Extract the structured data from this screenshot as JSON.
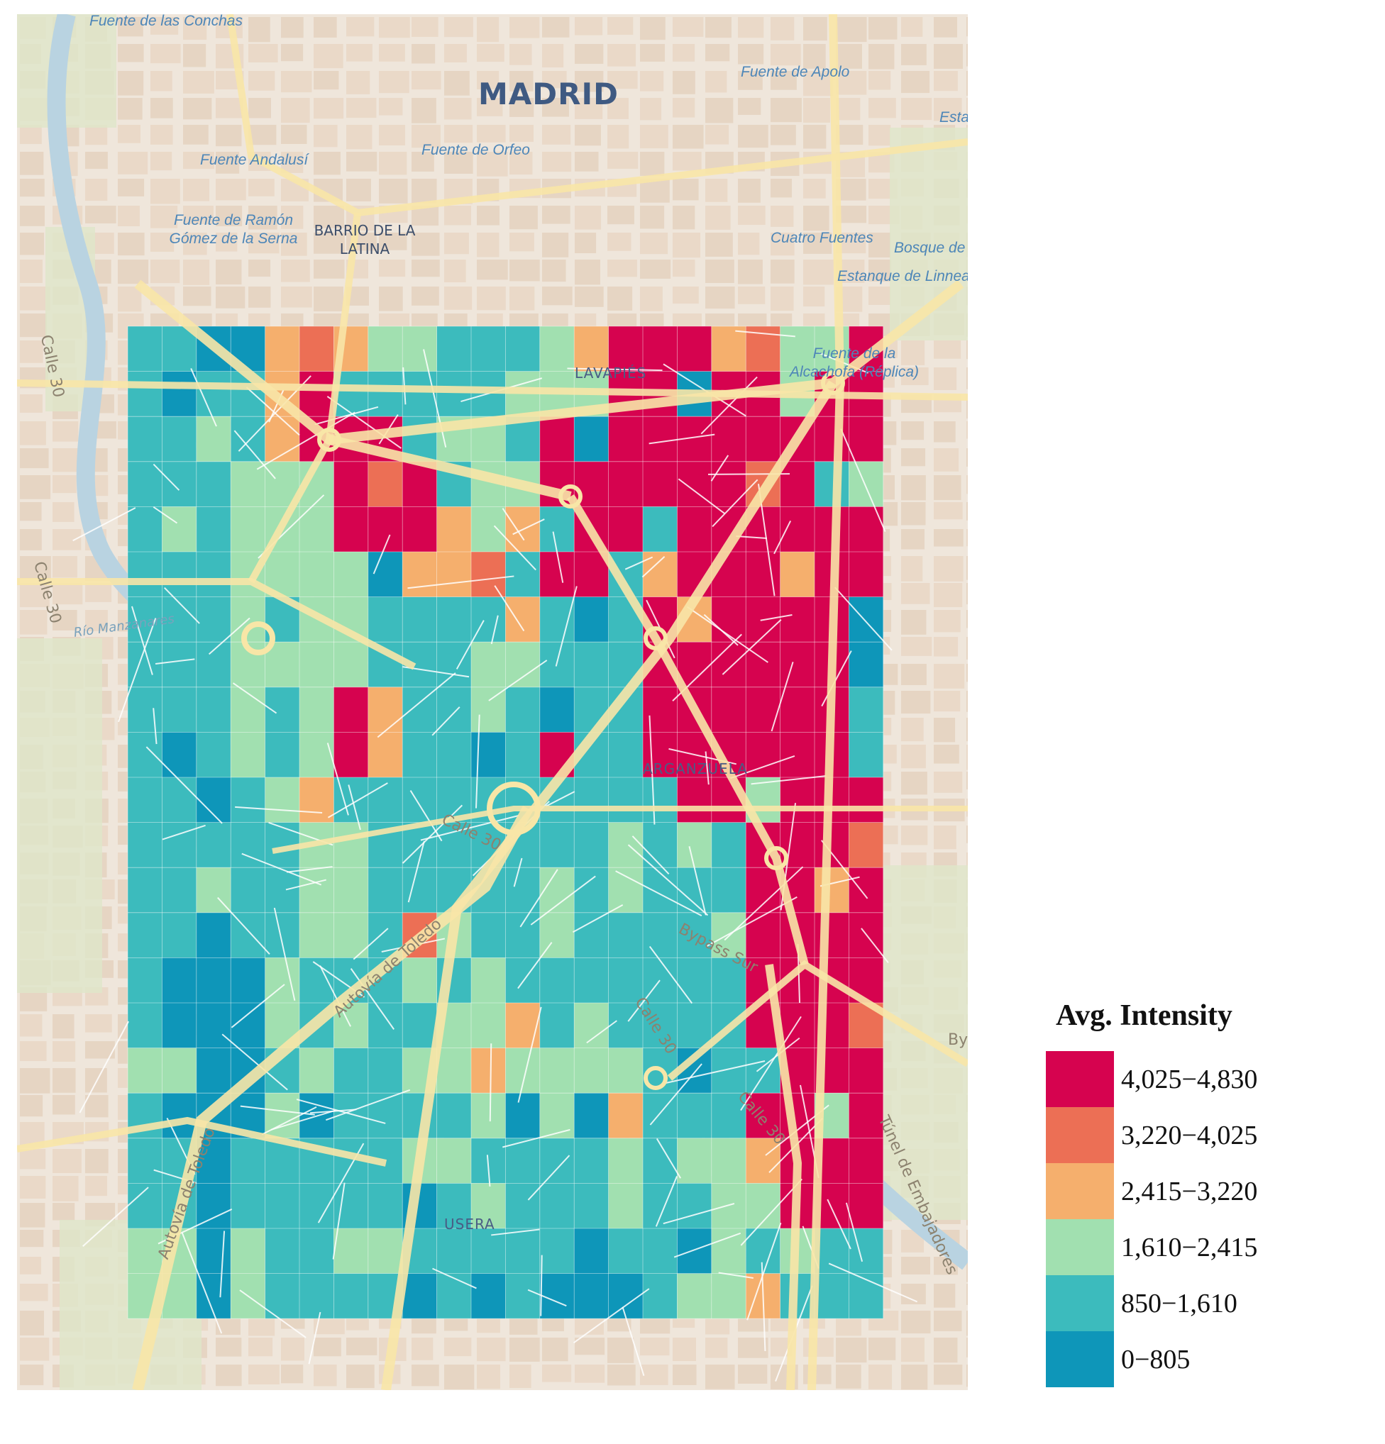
{
  "map": {
    "city_label": "MADRID",
    "neighborhoods": [
      "BARRIO DE LA LATINA",
      "LAVAPIÉS",
      "ARGANZUELA",
      "USERA"
    ],
    "places": [
      "Fuente de las Conchas",
      "Fuente de Apolo",
      "Fuente de Orfeo",
      "Fuente Andalusí",
      "Fuente de Ramón Gómez de la Serna",
      "Cuatro Fuentes",
      "Bosque de",
      "Estanque de Linnea",
      "Esta",
      "Fuente de la Alcachofa (Réplica)"
    ],
    "roads": [
      "Calle 30",
      "Calle 30",
      "Calle 30",
      "Calle 30",
      "Calle 30",
      "Autovía de Toledo",
      "Autovía de Toledo",
      "Bypass Sur",
      "Túnel de Embajadores",
      "By",
      "Río Manzanares"
    ]
  },
  "grid": {
    "cols": 22,
    "rows": 22,
    "colors": {
      "A": "#d6034f",
      "B": "#ec6f55",
      "C": "#f5af6d",
      "D": "#a1e0b0",
      "E": "#3cbbbd",
      "F": "#0e96b9"
    },
    "cells": [
      "EEFFCBCDDEEEDCAAACBDDA",
      "EFEECAEEEEEDDDAAFAADAA",
      "EEDECAAAEDDEAFAAAAAAAA",
      "EEEDDDABAEDDAAAAAABAED",
      "EDEDDDAAACDCEAAEAAAAAA",
      "EEEDDDDFCCBEAAECAAACAA",
      "EEEDEDDEEEECEFEACAAAAF",
      "EEEDDDDEEEDDEEEAAAAAAF",
      "EEEDEDACEEDEFEEAAAAAAE",
      "EFEDEDACEEFEAEEAAAAAAE",
      "EEFEDCEEEEEEEEEEAADAAA",
      "EEEEEDDEEEEEEEDEDEAAAB",
      "EEDEEDDEEEEEDEDEEEAACA",
      "EEFEEDDEBDEEDEEEEDAAAA",
      "EFFFDEEEDEDEEEEEEEAAAA",
      "EFFFDEDEEDDCEDEEEEAAAB",
      "DDFFEDEEDDCDDDDEFEEAAA",
      "EFFFDFEEEEDFDFCEEEAADA",
      "EEFEEEEEDDEEEEDEDDCAAA",
      "EEFEEEEEFEDEEEDEEDDAAA",
      "DDFDEEDDEEEEEFEEFDEDEE",
      "DDFDEEEEFEFEFFFEDDCEEE"
    ]
  },
  "legend": {
    "title": "Avg. Intensity",
    "items": [
      {
        "label": "4,025−4,830",
        "color": "#d6034f"
      },
      {
        "label": "3,220−4,025",
        "color": "#ec6f55"
      },
      {
        "label": "2,415−3,220",
        "color": "#f5af6d"
      },
      {
        "label": "1,610−2,415",
        "color": "#a1e0b0"
      },
      {
        "label": "850−1,610",
        "color": "#3cbbbd"
      },
      {
        "label": "0−805",
        "color": "#0e96b9"
      }
    ]
  }
}
